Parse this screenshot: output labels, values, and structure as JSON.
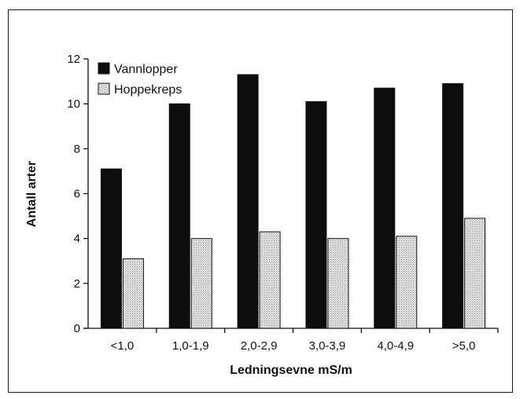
{
  "chart_data": {
    "type": "bar",
    "title": "",
    "xlabel": "Ledningsevne mS/m",
    "ylabel": "Antall arter",
    "categories": [
      "<1,0",
      "1,0-1,9",
      "2,0-2,9",
      "3,0-3,9",
      "4,0-4,9",
      ">5,0"
    ],
    "series": [
      {
        "name": "Vannlopper",
        "values": [
          7.1,
          10.0,
          11.3,
          10.1,
          10.7,
          10.9
        ],
        "color": "#0d0d0d"
      },
      {
        "name": "Hoppekreps",
        "values": [
          3.1,
          4.0,
          4.3,
          4.0,
          4.1,
          4.9
        ],
        "color": "#cfcfcf"
      }
    ],
    "ylim": [
      0,
      12
    ],
    "yticks": [
      0,
      2,
      4,
      6,
      8,
      10,
      12
    ],
    "grid": false,
    "legend_position": "top-left"
  }
}
